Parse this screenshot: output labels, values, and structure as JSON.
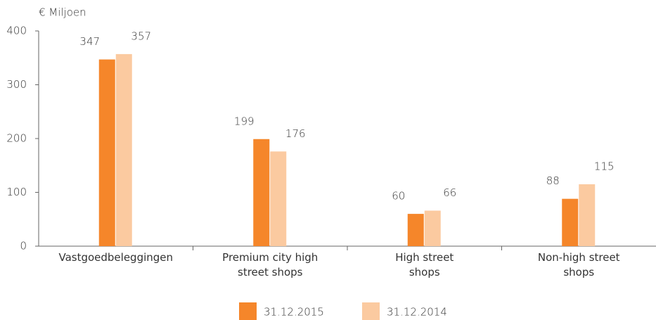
{
  "chart_data": {
    "type": "bar",
    "y_label": "€ Miljoen",
    "categories": [
      "Vastgoedbeleggingen",
      "Premium city high street shops",
      "High street shops",
      "Non-high street shops"
    ],
    "series": [
      {
        "name": "31.12.2015",
        "color": "#f5862a",
        "values": [
          347,
          199,
          60,
          88
        ]
      },
      {
        "name": "31.12.2014",
        "color": "#fbcaa0",
        "values": [
          357,
          176,
          66,
          115
        ]
      }
    ],
    "ylim": [
      0,
      400
    ],
    "yticks": [
      0,
      100,
      200,
      300,
      400
    ],
    "grid": false,
    "legend": "bottom"
  }
}
